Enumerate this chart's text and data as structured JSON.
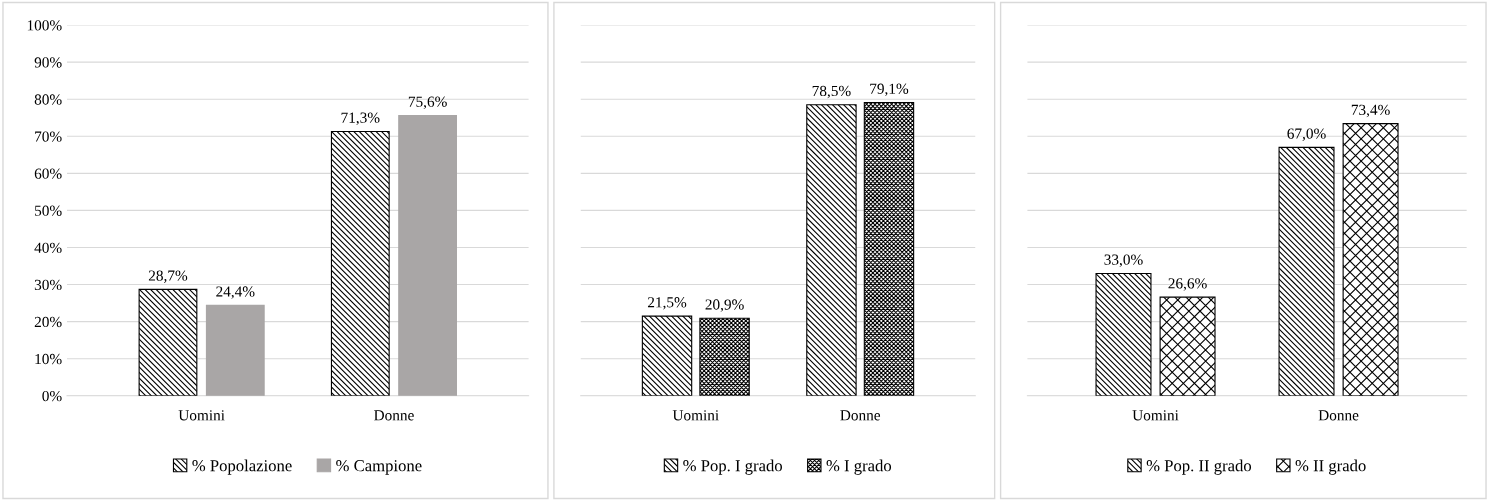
{
  "chart_data": [
    {
      "type": "bar",
      "categories": [
        "Uomini",
        "Donne"
      ],
      "ylim": [
        0,
        100
      ],
      "yticks": [
        {
          "value": 0,
          "label": "0%"
        },
        {
          "value": 10,
          "label": "10%"
        },
        {
          "value": 20,
          "label": "20%"
        },
        {
          "value": 30,
          "label": "30%"
        },
        {
          "value": 40,
          "label": "40%"
        },
        {
          "value": 50,
          "label": "50%"
        },
        {
          "value": 60,
          "label": "60%"
        },
        {
          "value": 70,
          "label": "70%"
        },
        {
          "value": 80,
          "label": "80%"
        },
        {
          "value": 90,
          "label": "90%"
        },
        {
          "value": 100,
          "label": "100%"
        }
      ],
      "grid": "y",
      "legend": "bottom",
      "series": [
        {
          "name": "% Popolazione",
          "color": "#000000",
          "values": [
            28.7,
            71.3
          ],
          "value_labels": [
            "28,7%",
            "71,3%"
          ]
        },
        {
          "name": "% Campione",
          "color": "#a9a6a6",
          "values": [
            24.4,
            75.6
          ],
          "value_labels": [
            "24,4%",
            "75,6%"
          ]
        }
      ]
    },
    {
      "type": "bar",
      "categories": [
        "Uomini",
        "Donne"
      ],
      "ylim": [
        0,
        100
      ],
      "yticks": [
        0,
        10,
        20,
        30,
        40,
        50,
        60,
        70,
        80,
        90,
        100
      ],
      "tick_labels": "x",
      "grid": "y",
      "legend": "bottom",
      "series": [
        {
          "name": "% Pop. I grado",
          "color": "#000000",
          "values": [
            21.5,
            78.5
          ],
          "value_labels": [
            "21,5%",
            "78,5%"
          ]
        },
        {
          "name": "% I grado",
          "color": "#000000",
          "values": [
            20.9,
            79.1
          ],
          "value_labels": [
            "20,9%",
            "79,1%"
          ]
        }
      ]
    },
    {
      "type": "bar",
      "categories": [
        "Uomini",
        "Donne"
      ],
      "ylim": [
        0,
        100
      ],
      "yticks": [
        0,
        10,
        20,
        30,
        40,
        50,
        60,
        70,
        80,
        90,
        100
      ],
      "tick_labels": "x",
      "grid": "y",
      "legend": "bottom",
      "series": [
        {
          "name": "% Pop. II grado",
          "color": "#000000",
          "values": [
            33.0,
            67.0
          ],
          "value_labels": [
            "33,0%",
            "67,0%"
          ]
        },
        {
          "name": "% II grado",
          "color": "#000000",
          "values": [
            26.6,
            73.4
          ],
          "value_labels": [
            "26,6%",
            "73,4%"
          ]
        }
      ]
    }
  ]
}
